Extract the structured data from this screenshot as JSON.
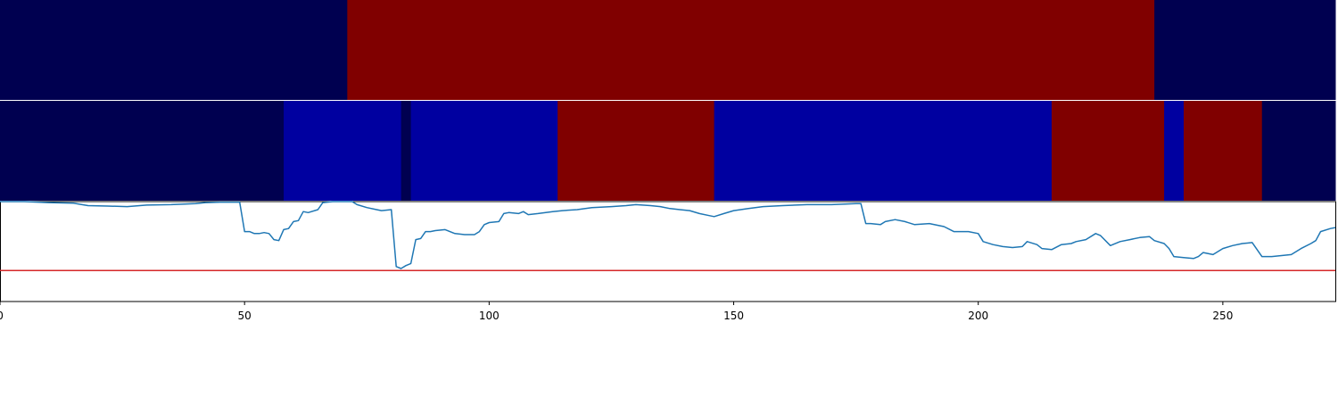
{
  "chart_data": {
    "type": "line",
    "title": "",
    "xlabel": "",
    "ylabel": "",
    "xlim": [
      0,
      273
    ],
    "xticks": [
      "0",
      "50",
      "100",
      "150",
      "200",
      "250"
    ],
    "state_bars": [
      {
        "segments": [
          {
            "start": 0,
            "end": 71,
            "color": "#000050"
          },
          {
            "start": 71,
            "end": 236,
            "color": "#800000"
          },
          {
            "start": 236,
            "end": 273,
            "color": "#000050"
          }
        ]
      },
      {
        "segments": [
          {
            "start": 0,
            "end": 58,
            "color": "#000050"
          },
          {
            "start": 58,
            "end": 82,
            "color": "#0000a0"
          },
          {
            "start": 82,
            "end": 84,
            "color": "#000050"
          },
          {
            "start": 84,
            "end": 114,
            "color": "#0000a0"
          },
          {
            "start": 114,
            "end": 146,
            "color": "#800000"
          },
          {
            "start": 146,
            "end": 215,
            "color": "#0000a0"
          },
          {
            "start": 215,
            "end": 238,
            "color": "#800000"
          },
          {
            "start": 238,
            "end": 242,
            "color": "#0000a0"
          },
          {
            "start": 242,
            "end": 258,
            "color": "#800000"
          },
          {
            "start": 258,
            "end": 273,
            "color": "#000050"
          }
        ]
      }
    ],
    "ylim": [
      0,
      1
    ],
    "threshold": {
      "value": 0.31,
      "color": "#d62728"
    },
    "series": [
      {
        "color": "#1f77b4",
        "points": [
          [
            0,
            1.0
          ],
          [
            5,
            1.0
          ],
          [
            10,
            0.99
          ],
          [
            15,
            0.985
          ],
          [
            18,
            0.96
          ],
          [
            22,
            0.955
          ],
          [
            26,
            0.95
          ],
          [
            30,
            0.965
          ],
          [
            35,
            0.97
          ],
          [
            40,
            0.98
          ],
          [
            42,
            0.99
          ],
          [
            45,
            0.995
          ],
          [
            49,
            0.995
          ],
          [
            50,
            0.7
          ],
          [
            51,
            0.7
          ],
          [
            52,
            0.68
          ],
          [
            53,
            0.68
          ],
          [
            54,
            0.69
          ],
          [
            55,
            0.68
          ],
          [
            56,
            0.62
          ],
          [
            57,
            0.61
          ],
          [
            58,
            0.72
          ],
          [
            59,
            0.73
          ],
          [
            60,
            0.8
          ],
          [
            61,
            0.81
          ],
          [
            62,
            0.9
          ],
          [
            63,
            0.89
          ],
          [
            65,
            0.92
          ],
          [
            66,
            0.99
          ],
          [
            68,
            1.0
          ],
          [
            70,
            1.01
          ],
          [
            72,
            1.0
          ],
          [
            73,
            0.97
          ],
          [
            75,
            0.94
          ],
          [
            77,
            0.92
          ],
          [
            78,
            0.91
          ],
          [
            80,
            0.92
          ],
          [
            81,
            0.35
          ],
          [
            82,
            0.33
          ],
          [
            83,
            0.36
          ],
          [
            84,
            0.38
          ],
          [
            85,
            0.62
          ],
          [
            86,
            0.63
          ],
          [
            87,
            0.7
          ],
          [
            88,
            0.7
          ],
          [
            89,
            0.71
          ],
          [
            91,
            0.72
          ],
          [
            93,
            0.68
          ],
          [
            95,
            0.67
          ],
          [
            97,
            0.67
          ],
          [
            98,
            0.7
          ],
          [
            99,
            0.77
          ],
          [
            100,
            0.79
          ],
          [
            102,
            0.8
          ],
          [
            103,
            0.88
          ],
          [
            104,
            0.89
          ],
          [
            106,
            0.88
          ],
          [
            107,
            0.9
          ],
          [
            108,
            0.87
          ],
          [
            110,
            0.88
          ],
          [
            113,
            0.9
          ],
          [
            115,
            0.91
          ],
          [
            118,
            0.92
          ],
          [
            121,
            0.94
          ],
          [
            125,
            0.95
          ],
          [
            128,
            0.96
          ],
          [
            130,
            0.97
          ],
          [
            133,
            0.96
          ],
          [
            135,
            0.95
          ],
          [
            137,
            0.93
          ],
          [
            139,
            0.92
          ],
          [
            141,
            0.91
          ],
          [
            143,
            0.88
          ],
          [
            145,
            0.86
          ],
          [
            146,
            0.85
          ],
          [
            148,
            0.88
          ],
          [
            150,
            0.91
          ],
          [
            153,
            0.93
          ],
          [
            156,
            0.95
          ],
          [
            160,
            0.96
          ],
          [
            165,
            0.97
          ],
          [
            170,
            0.97
          ],
          [
            175,
            0.98
          ],
          [
            176,
            0.98
          ],
          [
            177,
            0.78
          ],
          [
            178,
            0.78
          ],
          [
            180,
            0.77
          ],
          [
            181,
            0.8
          ],
          [
            183,
            0.82
          ],
          [
            185,
            0.8
          ],
          [
            187,
            0.77
          ],
          [
            190,
            0.78
          ],
          [
            193,
            0.75
          ],
          [
            195,
            0.7
          ],
          [
            198,
            0.7
          ],
          [
            200,
            0.68
          ],
          [
            201,
            0.6
          ],
          [
            203,
            0.57
          ],
          [
            205,
            0.55
          ],
          [
            207,
            0.54
          ],
          [
            209,
            0.55
          ],
          [
            210,
            0.6
          ],
          [
            212,
            0.57
          ],
          [
            213,
            0.53
          ],
          [
            215,
            0.52
          ],
          [
            217,
            0.57
          ],
          [
            219,
            0.58
          ],
          [
            220,
            0.6
          ],
          [
            222,
            0.62
          ],
          [
            224,
            0.68
          ],
          [
            225,
            0.66
          ],
          [
            227,
            0.56
          ],
          [
            229,
            0.6
          ],
          [
            231,
            0.62
          ],
          [
            233,
            0.64
          ],
          [
            235,
            0.65
          ],
          [
            236,
            0.61
          ],
          [
            238,
            0.58
          ],
          [
            239,
            0.53
          ],
          [
            240,
            0.45
          ],
          [
            242,
            0.44
          ],
          [
            244,
            0.43
          ],
          [
            245,
            0.45
          ],
          [
            246,
            0.49
          ],
          [
            248,
            0.47
          ],
          [
            250,
            0.53
          ],
          [
            252,
            0.56
          ],
          [
            254,
            0.58
          ],
          [
            256,
            0.59
          ],
          [
            258,
            0.45
          ],
          [
            260,
            0.45
          ],
          [
            262,
            0.46
          ],
          [
            264,
            0.47
          ],
          [
            266,
            0.53
          ],
          [
            268,
            0.58
          ],
          [
            269,
            0.61
          ],
          [
            270,
            0.7
          ],
          [
            272,
            0.73
          ],
          [
            273,
            0.74
          ]
        ]
      }
    ]
  }
}
